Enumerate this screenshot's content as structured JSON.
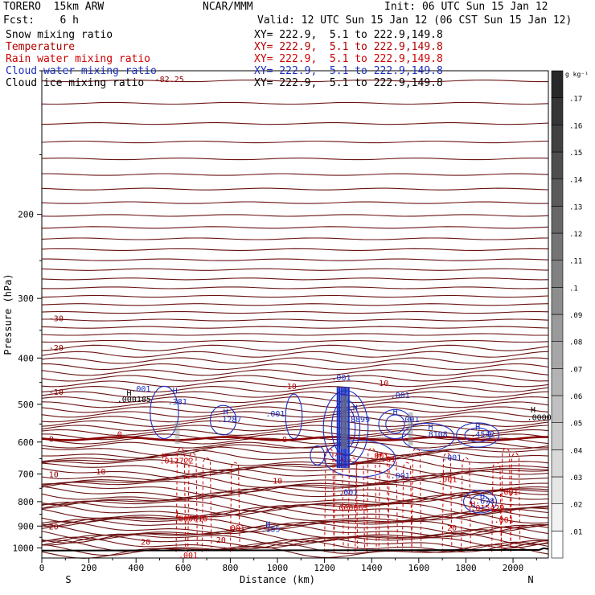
{
  "header": {
    "model": "TORERO  15km ARW",
    "center": "NCAR/MMM",
    "init": "Init: 06 UTC Sun 15 Jan 12",
    "fcst": "Fcst:    6 h",
    "valid": "Valid: 12 UTC Sun 15 Jan 12 (06 CST Sun 15 Jan 12)"
  },
  "fields": [
    {
      "label": "Snow mixing ratio",
      "xy": "XY= 222.9,  5.1 to 222.9,149.8",
      "color": "#000000"
    },
    {
      "label": "Temperature",
      "xy": "XY= 222.9,  5.1 to 222.9,149.8",
      "color": "#b00000"
    },
    {
      "label": "Rain water mixing ratio",
      "xy": "XY= 222.9,  5.1 to 222.9,149.8",
      "color": "#cc0000"
    },
    {
      "label": "Cloud water mixing ratio",
      "xy": "XY= 222.9,  5.1 to 222.9,149.8",
      "color": "#1a2fbf"
    },
    {
      "label": "Cloud ice mixing ratio",
      "xy": "XY= 222.9,  5.1 to 222.9,149.8",
      "color": "#000000"
    }
  ],
  "chart_data": {
    "type": "cross-section contour",
    "xlabel": "Distance (km)",
    "ylabel": "Pressure (hPa)",
    "xlim": [
      0,
      2150
    ],
    "ylim": [
      1050,
      100
    ],
    "x_ticks": [
      0,
      200,
      400,
      600,
      800,
      1000,
      1200,
      1400,
      1600,
      1800,
      2000
    ],
    "y_ticks": [
      200,
      300,
      400,
      500,
      600,
      700,
      800,
      900,
      1000
    ],
    "x_end_labels": {
      "left": "S",
      "right": "N"
    },
    "colorbar": {
      "unit": "g kg⁻¹",
      "levels": [
        ".01",
        ".02",
        ".03",
        ".04",
        ".05",
        ".06",
        ".07",
        ".08",
        ".09",
        ".1",
        ".11",
        ".12",
        ".13",
        ".14",
        ".15",
        ".16",
        ".17"
      ]
    },
    "temperature_isotherms": [
      {
        "label": "-30",
        "y": 330
      },
      {
        "label": "-20",
        "y": 380
      },
      {
        "label": "-10",
        "y": 470
      },
      {
        "label": "0",
        "y": 590
      },
      {
        "label": "10",
        "y": 700
      },
      {
        "label": "20",
        "y": 900
      }
    ],
    "top_label": "-82.25",
    "annotations": [
      {
        "text": "H",
        "x": 360,
        "y": 480,
        "color": "#000000"
      },
      {
        "text": ".000185",
        "x": 320,
        "y": 495,
        "color": "#000000"
      },
      {
        "text": ".001",
        "x": 380,
        "y": 470,
        "color": "#1a2fbf"
      },
      {
        "text": "H",
        "x": 555,
        "y": 475,
        "color": "#1a2fbf"
      },
      {
        "text": ".381",
        "x": 535,
        "y": 500,
        "color": "#1a2fbf"
      },
      {
        "text": "H",
        "x": 770,
        "y": 525,
        "color": "#1a2fbf"
      },
      {
        "text": ".1287",
        "x": 745,
        "y": 545,
        "color": "#1a2fbf"
      },
      {
        "text": ".001",
        "x": 950,
        "y": 530,
        "color": "#1a2fbf"
      },
      {
        "text": "-10",
        "x": 1020,
        "y": 465,
        "color": "#b00000"
      },
      {
        "text": ".001",
        "x": 1230,
        "y": 445,
        "color": "#1a2fbf"
      },
      {
        "text": "-10",
        "x": 1410,
        "y": 458,
        "color": "#b00000"
      },
      {
        "text": ".001",
        "x": 1480,
        "y": 485,
        "color": "#1a2fbf"
      },
      {
        "text": "H",
        "x": 1320,
        "y": 515,
        "color": "#1a2fbf"
      },
      {
        "text": ".8899",
        "x": 1290,
        "y": 545,
        "color": "#1a2fbf"
      },
      {
        "text": "H",
        "x": 1490,
        "y": 525,
        "color": "#1a2fbf"
      },
      {
        "text": ".001",
        "x": 1520,
        "y": 545,
        "color": "#1a2fbf"
      },
      {
        "text": "H",
        "x": 1640,
        "y": 565,
        "color": "#1a2fbf"
      },
      {
        "text": ".8108",
        "x": 1620,
        "y": 585,
        "color": "#1a2fbf"
      },
      {
        "text": "H",
        "x": 1840,
        "y": 565,
        "color": "#1a2fbf"
      },
      {
        "text": ".4542",
        "x": 1820,
        "y": 585,
        "color": "#1a2fbf"
      },
      {
        "text": "H",
        "x": 2075,
        "y": 520,
        "color": "#000000"
      },
      {
        "text": ".0000",
        "x": 2060,
        "y": 540,
        "color": "#000000"
      },
      {
        "text": "0",
        "x": 320,
        "y": 585,
        "color": "#b00000"
      },
      {
        "text": "0",
        "x": 1020,
        "y": 600,
        "color": "#b00000"
      },
      {
        "text": "H",
        "x": 510,
        "y": 650,
        "color": "#cc0000"
      },
      {
        "text": ".012722",
        "x": 500,
        "y": 665,
        "color": "#cc0000"
      },
      {
        "text": ".001",
        "x": 1390,
        "y": 650,
        "color": "#cc0000"
      },
      {
        "text": ".01",
        "x": 1440,
        "y": 660,
        "color": "#cc0000"
      },
      {
        "text": "H",
        "x": 1420,
        "y": 648,
        "color": "#cc0000"
      },
      {
        "text": ".001",
        "x": 1700,
        "y": 655,
        "color": "#1a2fbf"
      },
      {
        "text": ".001",
        "x": 1480,
        "y": 715,
        "color": "#1a2fbf"
      },
      {
        "text": "10",
        "x": 230,
        "y": 702,
        "color": "#b00000"
      },
      {
        "text": "10",
        "x": 980,
        "y": 733,
        "color": "#b00000"
      },
      {
        "text": ".001",
        "x": 1680,
        "y": 728,
        "color": "#cc0000"
      },
      {
        "text": ".001",
        "x": 1260,
        "y": 775,
        "color": "#1a2fbf"
      },
      {
        "text": ".001",
        "x": 1940,
        "y": 775,
        "color": "#cc0000"
      },
      {
        "text": "H",
        "x": 1860,
        "y": 790,
        "color": "#1a2fbf"
      },
      {
        "text": ".678",
        "x": 1840,
        "y": 808,
        "color": "#1a2fbf"
      },
      {
        "text": "H",
        "x": 1820,
        "y": 820,
        "color": "#cc0000"
      },
      {
        "text": ".015429",
        "x": 1820,
        "y": 835,
        "color": "#cc0000"
      },
      {
        "text": ".000063",
        "x": 1240,
        "y": 835,
        "color": "#cc0000"
      },
      {
        "text": "L",
        "x": 570,
        "y": 860,
        "color": "#cc0000"
      },
      {
        "text": ".000010",
        "x": 560,
        "y": 880,
        "color": "#cc0000"
      },
      {
        "text": ".001",
        "x": 1920,
        "y": 885,
        "color": "#cc0000"
      },
      {
        "text": ".001",
        "x": 780,
        "y": 920,
        "color": "#cc0000"
      },
      {
        "text": "H",
        "x": 950,
        "y": 905,
        "color": "#1a2fbf"
      },
      {
        "text": ".155",
        "x": 930,
        "y": 925,
        "color": "#1a2fbf"
      },
      {
        "text": "20",
        "x": 1720,
        "y": 920,
        "color": "#b00000"
      },
      {
        "text": "20",
        "x": 740,
        "y": 975,
        "color": "#b00000"
      },
      {
        "text": "20",
        "x": 420,
        "y": 985,
        "color": "#b00000"
      },
      {
        "text": ".001",
        "x": 580,
        "y": 1050,
        "color": "#cc0000"
      }
    ]
  }
}
